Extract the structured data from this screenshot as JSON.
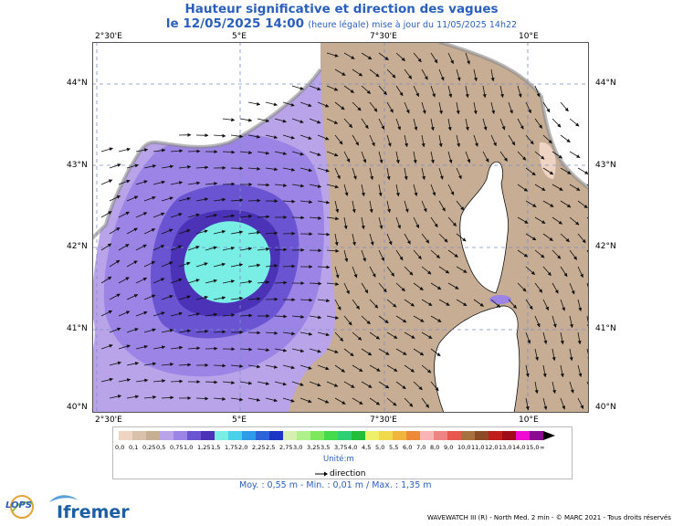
{
  "title": {
    "main": "Hauteur significative et direction des vagues",
    "date": "le 12/05/2025 14:00",
    "note": "(heure légale) mise à jour du 11/05/2025 14h22"
  },
  "axes": {
    "lon_labels": [
      "2°30'E",
      "5°E",
      "7°30'E",
      "10°E"
    ],
    "lat_labels": [
      "44°N",
      "43°N",
      "42°N",
      "41°N",
      "40°N"
    ]
  },
  "legend": {
    "values": [
      "0,0",
      "0,1",
      "0,25",
      "0,5",
      "0,75",
      "1,0",
      "1,25",
      "1,5",
      "1,75",
      "2,0",
      "2,25",
      "2,5",
      "2,75",
      "3,0",
      "3,25",
      "3,5",
      "3,75",
      "4,0",
      "4,5",
      "5,0",
      "5,5",
      "6,0",
      "7,0",
      "8,0",
      "9,0",
      "10,0",
      "11,0",
      "12,0",
      "13,0",
      "14,0",
      "15,0",
      "∞"
    ],
    "colors": [
      "#efd3c3",
      "#d9c2ab",
      "#c6ad94",
      "#b9a4ea",
      "#9b84e5",
      "#6a54d1",
      "#4b32b7",
      "#79eee5",
      "#4ad0ea",
      "#2e9be8",
      "#2b63d9",
      "#1d35c4",
      "#d6f0b2",
      "#aef08a",
      "#7ee85c",
      "#46db4c",
      "#2fcf74",
      "#23bd3a",
      "#eef06a",
      "#f0d94b",
      "#f0b53c",
      "#ee8a37",
      "#f9b5b5",
      "#ef8583",
      "#e7574f",
      "#a8703f",
      "#8d4a26",
      "#c21d1d",
      "#9e0c18",
      "#f00bd2",
      "#8a0b8f"
    ],
    "unit": "Unité:m",
    "direction": "direction"
  },
  "stats": "Moy. : 0,55 m  -  Min. : 0,01 m / Max. : 1,35 m",
  "footer": "WAVEWATCH III (R) - North Med. 2 min - © MARC 2021 - Tous droits réservés",
  "logos": {
    "lops": "LOPS",
    "ifremer": "Ifremer"
  }
}
